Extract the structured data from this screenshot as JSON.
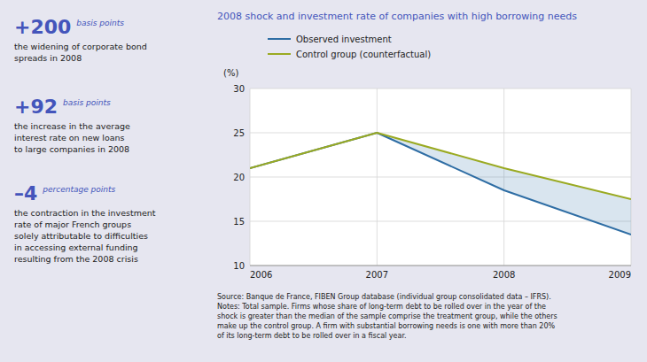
{
  "chart_data": {
    "type": "line",
    "title": "2008 shock and investment rate of companies with high borrowing needs",
    "y_label": "(%)",
    "x": [
      2006,
      2007,
      2008,
      2009
    ],
    "xlim": [
      2006,
      2009
    ],
    "xticks": [
      2006,
      2007,
      2008,
      2009
    ],
    "ylim": [
      10,
      30
    ],
    "yticks": [
      10,
      15,
      20,
      25,
      30
    ],
    "grid": true,
    "legend": "top",
    "series": [
      {
        "name": "Observed investment",
        "color": "#2e6da4",
        "values": [
          21.0,
          25.0,
          18.5,
          13.5
        ]
      },
      {
        "name": "Control group (counterfactual)",
        "color": "#9aaa22",
        "values": [
          21.0,
          25.0,
          21.0,
          17.5
        ]
      }
    ],
    "stats": [
      {
        "label": "+200",
        "unit": "basis points",
        "description": "the widening of corporate bond\nspreads in 2008"
      },
      {
        "label": "+92",
        "unit": "basis points",
        "description": "the increase in the average\ninterest rate on new loans\nto large companies in 2008"
      },
      {
        "label": "–4",
        "unit": "percentage points",
        "description": "the contraction in the investment\nrate of major French groups\nsolely attributable to difficulties\nin accessing external funding\nresulting from the 2008 crisis"
      }
    ],
    "source": "Source: Banque de France, FIBEN Group database (individual group consolidated data – IFRS).\nNotes: Total sample. Firms whose share of long-term debt to be rolled over in the year of the\nshock is greater than the median of the sample comprise the treatment group, while the others\nmake up the control group. A firm with substantial borrowing needs is one with more than 20%\nof its long-term debt to be rolled over in a fiscal year."
  }
}
